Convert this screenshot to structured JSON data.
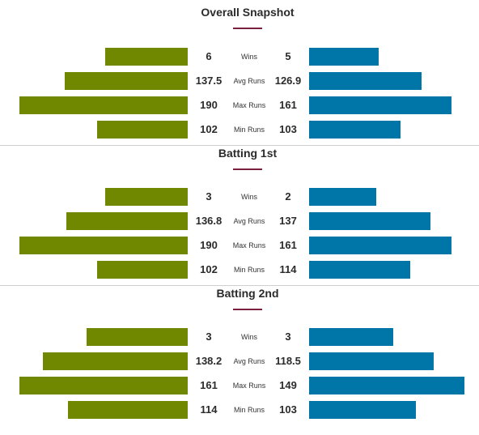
{
  "colors": {
    "left_team": "#708800",
    "right_team": "#0075a8",
    "accent_underline": "#7a1f3d",
    "divider": "#cfcfcf"
  },
  "sections": [
    {
      "title": "Overall Snapshot",
      "rows": [
        {
          "metric": "Wins",
          "left": "6",
          "right": "5",
          "left_fill": 0.49,
          "right_fill": 0.49
        },
        {
          "metric": "Avg Runs",
          "left": "137.5",
          "right": "126.9",
          "left_fill": 0.73,
          "right_fill": 0.79
        },
        {
          "metric": "Max Runs",
          "left": "190",
          "right": "161",
          "left_fill": 1.0,
          "right_fill": 1.0
        },
        {
          "metric": "Min Runs",
          "left": "102",
          "right": "103",
          "left_fill": 0.54,
          "right_fill": 0.64
        }
      ]
    },
    {
      "title": "Batting 1st",
      "rows": [
        {
          "metric": "Wins",
          "left": "3",
          "right": "2",
          "left_fill": 0.49,
          "right_fill": 0.47
        },
        {
          "metric": "Avg Runs",
          "left": "136.8",
          "right": "137",
          "left_fill": 0.72,
          "right_fill": 0.85
        },
        {
          "metric": "Max Runs",
          "left": "190",
          "right": "161",
          "left_fill": 1.0,
          "right_fill": 1.0
        },
        {
          "metric": "Min Runs",
          "left": "102",
          "right": "114",
          "left_fill": 0.54,
          "right_fill": 0.71
        }
      ]
    },
    {
      "title": "Batting 2nd",
      "rows": [
        {
          "metric": "Wins",
          "left": "3",
          "right": "3",
          "left_fill": 0.6,
          "right_fill": 0.54
        },
        {
          "metric": "Avg Runs",
          "left": "138.2",
          "right": "118.5",
          "left_fill": 0.86,
          "right_fill": 0.8
        },
        {
          "metric": "Max Runs",
          "left": "161",
          "right": "149",
          "left_fill": 1.0,
          "right_fill": 1.0
        },
        {
          "metric": "Min Runs",
          "left": "114",
          "right": "103",
          "left_fill": 0.71,
          "right_fill": 0.69
        }
      ]
    }
  ]
}
